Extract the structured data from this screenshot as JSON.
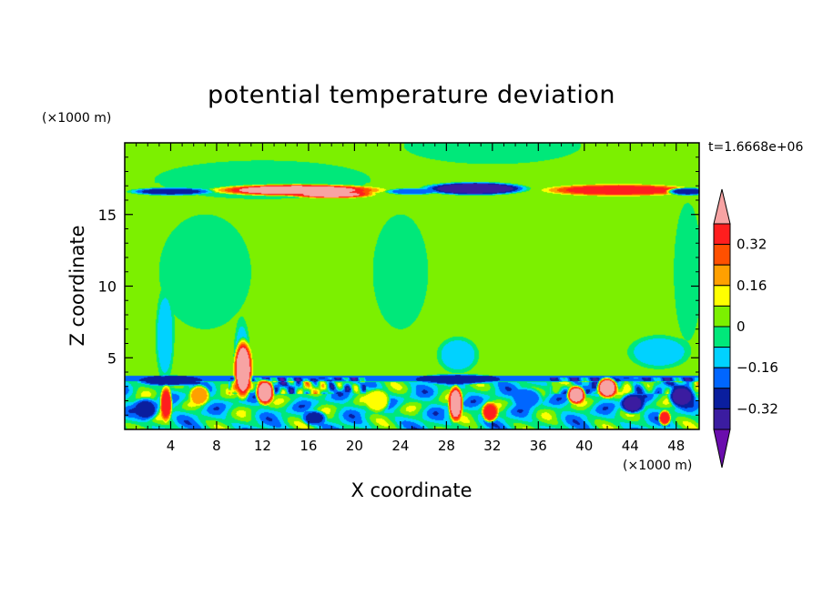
{
  "chart_data": {
    "type": "heatmap",
    "title": "potential temperature deviation",
    "xlabel": "X coordinate",
    "ylabel": "Z coordinate",
    "x_unit": "(×1000 m)",
    "y_unit": "(×1000 m)",
    "time_label": "t=1.6668e+06",
    "xlim": [
      0,
      50
    ],
    "ylim": [
      0,
      20
    ],
    "x_ticks": [
      4,
      8,
      12,
      16,
      20,
      24,
      28,
      32,
      36,
      40,
      44,
      48
    ],
    "y_ticks": [
      5,
      10,
      15
    ],
    "colorbar": {
      "labels": [
        {
          "value": 0.32,
          "text": "0.32"
        },
        {
          "value": 0.16,
          "text": "0.16"
        },
        {
          "value": 0,
          "text": "0"
        },
        {
          "value": -0.16,
          "text": "−0.16"
        },
        {
          "value": -0.32,
          "text": "−0.32"
        }
      ],
      "levels": [
        -0.4,
        -0.32,
        -0.24,
        -0.16,
        -0.08,
        0,
        0.08,
        0.16,
        0.24,
        0.32,
        0.4
      ],
      "colors": [
        "#6a0dad",
        "#3b1ca0",
        "#0a1e9e",
        "#0066ff",
        "#00d2ff",
        "#00e87a",
        "#7cf000",
        "#ffff00",
        "#ffa000",
        "#ff5000",
        "#ff1e1e",
        "#f7a3a3"
      ]
    },
    "field": {
      "background_value": 0.04,
      "features": [
        {
          "kind": "band",
          "z": [
            0,
            3.5
          ],
          "x": [
            0,
            50
          ],
          "value": -0.07
        },
        {
          "kind": "band",
          "z": [
            17.2,
            20
          ],
          "x": [
            0,
            50
          ],
          "value": 0.03
        },
        {
          "kind": "blob",
          "x": 12,
          "z": 17.4,
          "rx": 11,
          "rz": 1.6,
          "value": -0.04
        },
        {
          "kind": "blob",
          "x": 32,
          "z": 19.8,
          "rx": 9,
          "rz": 1.5,
          "value": -0.04
        },
        {
          "kind": "blob",
          "x": 7,
          "z": 11,
          "rx": 5,
          "rz": 5,
          "value": -0.03
        },
        {
          "kind": "blob",
          "x": 24,
          "z": 11,
          "rx": 3,
          "rz": 5,
          "value": -0.03
        },
        {
          "kind": "blob",
          "x": 49,
          "z": 11,
          "rx": 1.5,
          "rz": 6,
          "value": -0.03
        },
        {
          "kind": "blob",
          "x": 3.5,
          "z": 6.5,
          "rx": 0.9,
          "rz": 3.5,
          "value": -0.12
        },
        {
          "kind": "blob",
          "x": 10.2,
          "z": 5,
          "rx": 0.8,
          "rz": 3,
          "value": -0.12
        },
        {
          "kind": "blob",
          "x": 29,
          "z": 5.2,
          "rx": 2,
          "rz": 1.4,
          "value": -0.12
        },
        {
          "kind": "blob",
          "x": 46.5,
          "z": 5.4,
          "rx": 3,
          "rz": 1.3,
          "value": -0.12
        },
        {
          "kind": "blob",
          "x": 15,
          "z": 16.7,
          "rx": 8,
          "rz": 0.45,
          "value": 0.42
        },
        {
          "kind": "blob",
          "x": 18,
          "z": 16.4,
          "rx": 4,
          "rz": 0.3,
          "value": 0.4
        },
        {
          "kind": "blob",
          "x": 30.5,
          "z": 16.8,
          "rx": 5,
          "rz": 0.5,
          "value": -0.36
        },
        {
          "kind": "blob",
          "x": 43,
          "z": 16.7,
          "rx": 7,
          "rz": 0.45,
          "value": 0.35
        },
        {
          "kind": "blob",
          "x": 4,
          "z": 16.6,
          "rx": 4,
          "rz": 0.3,
          "value": -0.25
        },
        {
          "kind": "blob",
          "x": 49,
          "z": 16.6,
          "rx": 2,
          "rz": 0.3,
          "value": -0.25
        },
        {
          "kind": "blob",
          "x": 25,
          "z": 16.6,
          "rx": 2.5,
          "rz": 0.25,
          "value": -0.2
        },
        {
          "kind": "band",
          "z": [
            3.35,
            3.75
          ],
          "x": [
            0,
            50
          ],
          "value": -0.22
        },
        {
          "kind": "blob",
          "x": 29,
          "z": 3.5,
          "rx": 4,
          "rz": 0.4,
          "value": -0.3
        },
        {
          "kind": "blob",
          "x": 4,
          "z": 3.4,
          "rx": 3,
          "rz": 0.4,
          "value": -0.3
        },
        {
          "kind": "blob",
          "x": 10.3,
          "z": 4.2,
          "rx": 0.9,
          "rz": 2.3,
          "value": 0.45
        },
        {
          "kind": "blob",
          "x": 12.2,
          "z": 2.6,
          "rx": 0.9,
          "rz": 1.0,
          "value": 0.45
        },
        {
          "kind": "blob",
          "x": 28.8,
          "z": 1.8,
          "rx": 0.7,
          "rz": 1.4,
          "value": 0.45
        },
        {
          "kind": "blob",
          "x": 42,
          "z": 2.9,
          "rx": 1,
          "rz": 0.8,
          "value": 0.45
        },
        {
          "kind": "blob",
          "x": 39.3,
          "z": 2.4,
          "rx": 0.9,
          "rz": 0.7,
          "value": 0.45
        },
        {
          "kind": "blob",
          "x": 3.6,
          "z": 1.8,
          "rx": 0.6,
          "rz": 1.4,
          "value": 0.34
        },
        {
          "kind": "blob",
          "x": 31.8,
          "z": 1.2,
          "rx": 0.8,
          "rz": 0.8,
          "value": 0.33
        },
        {
          "kind": "blob",
          "x": 44.2,
          "z": 1.8,
          "rx": 1.2,
          "rz": 0.8,
          "value": -0.33
        },
        {
          "kind": "blob",
          "x": 48.5,
          "z": 2.3,
          "rx": 1.3,
          "rz": 0.9,
          "value": -0.33
        },
        {
          "kind": "blob",
          "x": 47,
          "z": 0.8,
          "rx": 0.6,
          "rz": 0.6,
          "value": 0.35
        },
        {
          "kind": "blob",
          "x": 1.8,
          "z": 1.4,
          "rx": 1.3,
          "rz": 0.9,
          "value": -0.25
        },
        {
          "kind": "blob",
          "x": 16.5,
          "z": 0.8,
          "rx": 1.2,
          "rz": 0.6,
          "value": -0.25
        },
        {
          "kind": "blob",
          "x": 35,
          "z": 2.2,
          "rx": 1.5,
          "rz": 0.8,
          "value": -0.2
        },
        {
          "kind": "blob",
          "x": 22,
          "z": 2,
          "rx": 1.2,
          "rz": 0.9,
          "value": 0.14
        },
        {
          "kind": "blob",
          "x": 6.5,
          "z": 2.4,
          "rx": 1.0,
          "rz": 0.8,
          "value": 0.2
        }
      ],
      "ripples": [
        {
          "x": [
            0,
            50
          ],
          "z": [
            0,
            3.3
          ],
          "amplitude": 0.18,
          "kx": 1.3,
          "kz": 2.3
        },
        {
          "x": [
            9,
            21
          ],
          "z": [
            2.5,
            3.6
          ],
          "amplitude": 0.22,
          "kx": 4.5,
          "kz": 4
        },
        {
          "x": [
            37,
            50
          ],
          "z": [
            2.5,
            3.6
          ],
          "amplitude": 0.16,
          "kx": 3.5,
          "kz": 3
        }
      ]
    }
  }
}
